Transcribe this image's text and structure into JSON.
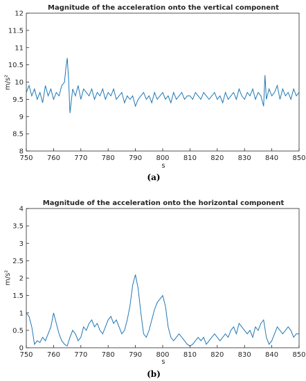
{
  "chart_data": [
    {
      "type": "line",
      "title": "Magnitude of the acceleration onto the vertical component",
      "xlabel": "s",
      "ylabel": "m/s²",
      "caption": "(a)",
      "xlim": [
        750,
        850
      ],
      "ylim": [
        8,
        12
      ],
      "xticks": [
        "750",
        "760",
        "770",
        "780",
        "790",
        "800",
        "810",
        "820",
        "830",
        "840",
        "850"
      ],
      "yticks": [
        "8",
        "8.5",
        "9",
        "9.5",
        "10",
        "10.5",
        "11",
        "11.5",
        "12"
      ],
      "color": "#1f77b4",
      "grid": false,
      "series": [
        {
          "x": [
            750,
            751,
            752,
            753,
            754,
            755,
            756,
            757,
            758,
            759,
            760,
            761,
            762,
            763,
            764,
            764.5,
            765,
            765.5,
            766,
            767,
            768,
            769,
            770,
            771,
            772,
            773,
            774,
            775,
            776,
            777,
            778,
            779,
            780,
            781,
            782,
            783,
            784,
            785,
            786,
            787,
            788,
            789,
            790,
            791,
            792,
            793,
            794,
            795,
            796,
            797,
            798,
            799,
            800,
            801,
            802,
            803,
            804,
            805,
            806,
            807,
            808,
            809,
            810,
            811,
            812,
            813,
            814,
            815,
            816,
            817,
            818,
            819,
            820,
            821,
            822,
            823,
            824,
            825,
            826,
            827,
            828,
            829,
            830,
            831,
            832,
            833,
            834,
            835,
            836,
            837,
            837.5,
            838,
            839,
            840,
            841,
            842,
            843,
            844,
            845,
            846,
            847,
            848,
            849,
            850
          ],
          "y": [
            9.7,
            9.9,
            9.6,
            9.8,
            9.5,
            9.7,
            9.4,
            9.9,
            9.6,
            9.8,
            9.5,
            9.7,
            9.6,
            9.9,
            10.0,
            10.4,
            10.7,
            10.1,
            9.1,
            9.8,
            9.6,
            9.9,
            9.5,
            9.8,
            9.7,
            9.6,
            9.8,
            9.5,
            9.7,
            9.6,
            9.8,
            9.5,
            9.7,
            9.6,
            9.8,
            9.5,
            9.6,
            9.7,
            9.4,
            9.6,
            9.5,
            9.6,
            9.3,
            9.5,
            9.6,
            9.7,
            9.5,
            9.6,
            9.4,
            9.7,
            9.5,
            9.6,
            9.7,
            9.5,
            9.6,
            9.4,
            9.7,
            9.5,
            9.6,
            9.7,
            9.5,
            9.6,
            9.6,
            9.5,
            9.7,
            9.6,
            9.5,
            9.7,
            9.6,
            9.5,
            9.6,
            9.7,
            9.5,
            9.6,
            9.4,
            9.7,
            9.5,
            9.6,
            9.7,
            9.5,
            9.8,
            9.6,
            9.5,
            9.7,
            9.6,
            9.8,
            9.5,
            9.7,
            9.6,
            9.3,
            10.2,
            9.5,
            9.8,
            9.6,
            9.7,
            9.9,
            9.5,
            9.8,
            9.6,
            9.7,
            9.5,
            9.8,
            9.6,
            9.7
          ]
        }
      ]
    },
    {
      "type": "line",
      "title": "Magnitude of the acceleration onto the horizontal component",
      "xlabel": "s",
      "ylabel": "m/s²",
      "caption": "(b)",
      "xlim": [
        750,
        850
      ],
      "ylim": [
        0,
        4
      ],
      "xticks": [
        "750",
        "760",
        "770",
        "780",
        "790",
        "800",
        "810",
        "820",
        "830",
        "840",
        "850"
      ],
      "yticks": [
        "0",
        "0.5",
        "1",
        "1.5",
        "2",
        "2.5",
        "3",
        "3.5",
        "4"
      ],
      "color": "#1f77b4",
      "grid": false,
      "series": [
        {
          "x": [
            750,
            751,
            752,
            753,
            754,
            755,
            756,
            757,
            758,
            759,
            760,
            761,
            762,
            763,
            764,
            765,
            766,
            767,
            768,
            769,
            770,
            771,
            772,
            773,
            774,
            775,
            776,
            777,
            778,
            779,
            780,
            781,
            782,
            783,
            784,
            785,
            786,
            787,
            788,
            789,
            790,
            791,
            792,
            793,
            794,
            795,
            796,
            797,
            798,
            799,
            800,
            801,
            802,
            803,
            804,
            805,
            806,
            807,
            808,
            809,
            810,
            811,
            812,
            813,
            814,
            815,
            816,
            817,
            818,
            819,
            820,
            821,
            822,
            823,
            824,
            825,
            826,
            827,
            828,
            829,
            830,
            831,
            832,
            833,
            834,
            835,
            836,
            837,
            838,
            839,
            840,
            841,
            842,
            843,
            844,
            845,
            846,
            847,
            848,
            849,
            850
          ],
          "y": [
            1.0,
            0.9,
            0.6,
            0.1,
            0.2,
            0.15,
            0.3,
            0.2,
            0.4,
            0.6,
            1.0,
            0.7,
            0.4,
            0.2,
            0.1,
            0.05,
            0.3,
            0.5,
            0.4,
            0.2,
            0.3,
            0.6,
            0.5,
            0.7,
            0.8,
            0.6,
            0.7,
            0.5,
            0.4,
            0.6,
            0.8,
            0.9,
            0.7,
            0.8,
            0.6,
            0.4,
            0.5,
            0.8,
            1.2,
            1.8,
            2.1,
            1.7,
            1.0,
            0.4,
            0.3,
            0.5,
            0.8,
            1.1,
            1.3,
            1.4,
            1.5,
            1.2,
            0.6,
            0.3,
            0.2,
            0.3,
            0.4,
            0.3,
            0.2,
            0.1,
            0.05,
            0.1,
            0.2,
            0.3,
            0.2,
            0.3,
            0.1,
            0.2,
            0.3,
            0.4,
            0.3,
            0.2,
            0.3,
            0.4,
            0.3,
            0.5,
            0.6,
            0.4,
            0.7,
            0.6,
            0.5,
            0.4,
            0.5,
            0.3,
            0.6,
            0.5,
            0.7,
            0.8,
            0.3,
            0.1,
            0.2,
            0.4,
            0.6,
            0.5,
            0.4,
            0.5,
            0.6,
            0.5,
            0.3,
            0.4,
            0.4
          ]
        }
      ]
    }
  ]
}
